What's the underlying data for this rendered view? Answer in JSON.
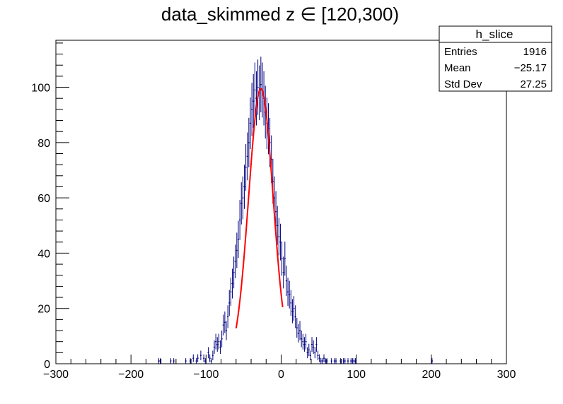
{
  "chart_data": {
    "type": "histogram",
    "title": "data_skimmed z  ∈ [120,300)",
    "xlabel": "",
    "ylabel": "",
    "xlim": [
      -300,
      300
    ],
    "ylim": [
      0,
      117
    ],
    "x_ticks": [
      -300,
      -200,
      -100,
      0,
      100,
      200,
      300
    ],
    "x_tick_labels": [
      "−300",
      "−200",
      "−100",
      "0",
      "100",
      "200",
      "300"
    ],
    "y_ticks": [
      0,
      20,
      40,
      60,
      80,
      100
    ],
    "y_tick_labels": [
      "0",
      "20",
      "40",
      "60",
      "80",
      "100"
    ],
    "grid": false,
    "histogram": {
      "name": "h_slice",
      "color": "#000080",
      "bin_width": 2,
      "points": [
        [
          -163,
          1
        ],
        [
          -161,
          1
        ],
        [
          -147,
          1
        ],
        [
          -143,
          1
        ],
        [
          -127,
          1
        ],
        [
          -121,
          1
        ],
        [
          -117,
          2
        ],
        [
          -113,
          1
        ],
        [
          -111,
          2
        ],
        [
          -107,
          3
        ],
        [
          -103,
          2
        ],
        [
          -101,
          1
        ],
        [
          -97,
          4
        ],
        [
          -95,
          2
        ],
        [
          -93,
          1
        ],
        [
          -91,
          3
        ],
        [
          -89,
          6
        ],
        [
          -87,
          8
        ],
        [
          -85,
          7
        ],
        [
          -83,
          8
        ],
        [
          -81,
          6
        ],
        [
          -79,
          9
        ],
        [
          -77,
          14
        ],
        [
          -75,
          15
        ],
        [
          -73,
          12
        ],
        [
          -71,
          17
        ],
        [
          -69,
          22
        ],
        [
          -67,
          26
        ],
        [
          -65,
          29
        ],
        [
          -63,
          33
        ],
        [
          -61,
          37
        ],
        [
          -59,
          41
        ],
        [
          -57,
          45
        ],
        [
          -55,
          52
        ],
        [
          -53,
          58
        ],
        [
          -51,
          60
        ],
        [
          -49,
          64
        ],
        [
          -47,
          71
        ],
        [
          -45,
          75
        ],
        [
          -43,
          80
        ],
        [
          -41,
          87
        ],
        [
          -39,
          92
        ],
        [
          -37,
          95
        ],
        [
          -35,
          99
        ],
        [
          -33,
          96
        ],
        [
          -31,
          100
        ],
        [
          -29,
          98
        ],
        [
          -27,
          101
        ],
        [
          -25,
          99
        ],
        [
          -23,
          96
        ],
        [
          -21,
          91
        ],
        [
          -19,
          87
        ],
        [
          -17,
          85
        ],
        [
          -15,
          80
        ],
        [
          -13,
          74
        ],
        [
          -11,
          66
        ],
        [
          -9,
          60
        ],
        [
          -7,
          55
        ],
        [
          -5,
          50
        ],
        [
          -3,
          46
        ],
        [
          -1,
          44
        ],
        [
          1,
          38
        ],
        [
          3,
          33
        ],
        [
          5,
          38
        ],
        [
          7,
          30
        ],
        [
          9,
          26
        ],
        [
          11,
          25
        ],
        [
          13,
          22
        ],
        [
          15,
          19
        ],
        [
          17,
          20
        ],
        [
          19,
          17
        ],
        [
          21,
          13
        ],
        [
          23,
          11
        ],
        [
          25,
          12
        ],
        [
          27,
          9
        ],
        [
          29,
          8
        ],
        [
          31,
          7
        ],
        [
          33,
          8
        ],
        [
          35,
          4
        ],
        [
          37,
          5
        ],
        [
          39,
          3
        ],
        [
          41,
          7
        ],
        [
          43,
          6
        ],
        [
          45,
          4
        ],
        [
          47,
          7
        ],
        [
          49,
          3
        ],
        [
          51,
          2
        ],
        [
          53,
          1
        ],
        [
          55,
          1
        ],
        [
          57,
          2
        ],
        [
          59,
          1
        ],
        [
          61,
          1
        ],
        [
          67,
          1
        ],
        [
          71,
          1
        ],
        [
          73,
          1
        ],
        [
          79,
          1
        ],
        [
          83,
          1
        ],
        [
          85,
          1
        ],
        [
          89,
          1
        ],
        [
          93,
          1
        ],
        [
          95,
          1
        ],
        [
          97,
          1
        ],
        [
          99,
          1
        ],
        [
          201,
          1
        ]
      ]
    },
    "fit": {
      "type": "gaussian",
      "color": "#ff0000",
      "constant": 99.5,
      "mean": -27,
      "sigma": 16.3,
      "range": [
        -60,
        2
      ]
    },
    "stats_box": {
      "name": "h_slice",
      "rows": [
        {
          "label": "Entries",
          "value": "1916"
        },
        {
          "label": "Mean",
          "value": "−25.17"
        },
        {
          "label": "Std Dev",
          "value": "27.25"
        }
      ]
    }
  }
}
